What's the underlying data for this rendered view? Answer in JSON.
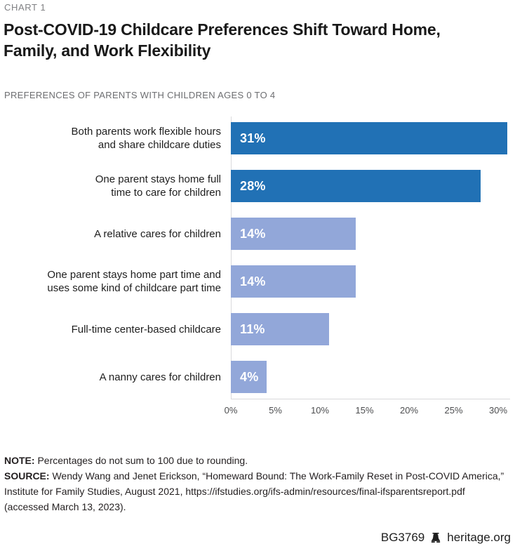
{
  "page": {
    "kicker": "CHART 1",
    "title_display": "Post-COVID-19 Childcare Preferences Shift Toward Home,\nFamily, and Work Flexibility",
    "subtitle": "PREFERENCES OF PARENTS WITH CHILDREN AGES 0 TO 4",
    "footer": {
      "doc_id": "BG3769",
      "site": "heritage.org",
      "logo_icon": "heritage-bell-icon"
    }
  },
  "notes": {
    "note_label": "NOTE:",
    "note_text": " Percentages do not sum to 100 due to rounding.",
    "source_label": "SOURCE:",
    "source_text": " Wendy Wang and Jenet Erickson, “Homeward Bound: The Work-Family Reset in Post-COVID America,” Institute for Family Studies, August 2021, https://ifstudies.org/ifs-admin/resources/final-ifsparentsreport.pdf (accessed March 13, 2023)."
  },
  "chart_data": {
    "type": "bar",
    "orientation": "horizontal",
    "title": "Post-COVID-19 Childcare Preferences Shift Toward Home, Family, and Work Flexibility",
    "subtitle": "PREFERENCES OF PARENTS WITH CHILDREN AGES 0 TO 4",
    "unit": "%",
    "xlim": [
      0,
      30
    ],
    "x_ticks": [
      0,
      5,
      10,
      15,
      20,
      25,
      30
    ],
    "x_tick_labels": [
      "0%",
      "5%",
      "10%",
      "15%",
      "20%",
      "25%",
      "30%"
    ],
    "grid": "zero-baseline-only",
    "legend_position": "none",
    "colors": {
      "highlight": "#2171B5",
      "muted": "#92A7D9",
      "axis": "#D9D9DB"
    },
    "categories": [
      "Both parents work flexible hours and share childcare duties",
      "One parent stays home full time to care for children",
      "A relative cares for children",
      "One parent stays home part time and uses some kind of childcare part time",
      "Full-time center-based childcare",
      "A nanny cares for children"
    ],
    "values": [
      31,
      28,
      14,
      14,
      11,
      4
    ],
    "rows": [
      {
        "label_display": "Both parents work flexible hours\nand share childcare duties",
        "value": 31,
        "value_label": "31%",
        "color": "#2171B5"
      },
      {
        "label_display": "One parent stays home full\ntime to care for children",
        "value": 28,
        "value_label": "28%",
        "color": "#2171B5"
      },
      {
        "label_display": "A relative cares for children",
        "value": 14,
        "value_label": "14%",
        "color": "#92A7D9"
      },
      {
        "label_display": "One parent stays home part time and\nuses some kind of childcare part time",
        "value": 14,
        "value_label": "14%",
        "color": "#92A7D9"
      },
      {
        "label_display": "Full-time center-based childcare",
        "value": 11,
        "value_label": "11%",
        "color": "#92A7D9"
      },
      {
        "label_display": "A nanny cares for children",
        "value": 4,
        "value_label": "4%",
        "color": "#92A7D9"
      }
    ]
  }
}
